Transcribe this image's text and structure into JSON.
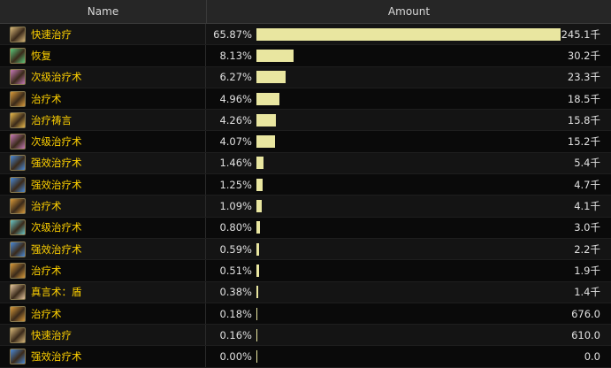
{
  "header": {
    "name_label": "Name",
    "amount_label": "Amount"
  },
  "rows": [
    {
      "name": "快速治疗",
      "percent": "65.87%",
      "fraction": 0.6587,
      "amount": "245.1千",
      "icon": "flash-heal-icon",
      "icon_color": "#d9b87a"
    },
    {
      "name": "恢复",
      "percent": "8.13%",
      "fraction": 0.0813,
      "amount": "30.2千",
      "icon": "renew-icon",
      "icon_color": "#5ac87a"
    },
    {
      "name": "次级治疗术",
      "percent": "6.27%",
      "fraction": 0.0627,
      "amount": "23.3千",
      "icon": "lesser-heal-icon",
      "icon_color": "#c77ab8"
    },
    {
      "name": "治疗术",
      "percent": "4.96%",
      "fraction": 0.0496,
      "amount": "18.5千",
      "icon": "heal-icon",
      "icon_color": "#d99a3a"
    },
    {
      "name": "治疗祷言",
      "percent": "4.26%",
      "fraction": 0.0426,
      "amount": "15.8千",
      "icon": "prayer-of-healing-icon",
      "icon_color": "#e8b84a"
    },
    {
      "name": "次级治疗术",
      "percent": "4.07%",
      "fraction": 0.0407,
      "amount": "15.2千",
      "icon": "lesser-heal-icon",
      "icon_color": "#c77ab8"
    },
    {
      "name": "强效治疗术",
      "percent": "1.46%",
      "fraction": 0.0146,
      "amount": "5.4千",
      "icon": "greater-heal-icon",
      "icon_color": "#4a8ad9"
    },
    {
      "name": "强效治疗术",
      "percent": "1.25%",
      "fraction": 0.0125,
      "amount": "4.7千",
      "icon": "greater-heal-icon",
      "icon_color": "#4a8ad9"
    },
    {
      "name": "治疗术",
      "percent": "1.09%",
      "fraction": 0.0109,
      "amount": "4.1千",
      "icon": "heal-icon",
      "icon_color": "#d99a3a"
    },
    {
      "name": "次级治疗术",
      "percent": "0.80%",
      "fraction": 0.008,
      "amount": "3.0千",
      "icon": "lesser-heal-icon",
      "icon_color": "#6ac8c8"
    },
    {
      "name": "强效治疗术",
      "percent": "0.59%",
      "fraction": 0.0059,
      "amount": "2.2千",
      "icon": "greater-heal-icon",
      "icon_color": "#4a8ad9"
    },
    {
      "name": "治疗术",
      "percent": "0.51%",
      "fraction": 0.0051,
      "amount": "1.9千",
      "icon": "heal-icon",
      "icon_color": "#d99a3a"
    },
    {
      "name": "真言术：盾",
      "percent": "0.38%",
      "fraction": 0.0038,
      "amount": "1.4千",
      "icon": "power-word-shield-icon",
      "icon_color": "#e8c8a0"
    },
    {
      "name": "治疗术",
      "percent": "0.18%",
      "fraction": 0.0018,
      "amount": "676.0",
      "icon": "heal-icon",
      "icon_color": "#d99a3a"
    },
    {
      "name": "快速治疗",
      "percent": "0.16%",
      "fraction": 0.0016,
      "amount": "610.0",
      "icon": "flash-heal-icon",
      "icon_color": "#d9b87a"
    },
    {
      "name": "强效治疗术",
      "percent": "0.00%",
      "fraction": 0.0,
      "amount": "0.0",
      "icon": "greater-heal-icon",
      "icon_color": "#4a8ad9"
    }
  ]
}
